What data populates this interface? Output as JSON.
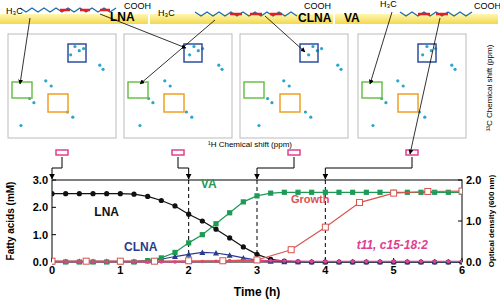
{
  "header": {
    "molecules": [
      {
        "label": "LNA",
        "methyl": "H₃C",
        "acid": "COOH"
      },
      {
        "label": "CLNA",
        "methyl": "H₃C",
        "acid": "COOH"
      },
      {
        "label": "VA",
        "methyl": "H₃C",
        "acid": "COOH"
      }
    ],
    "x_axis_label": "¹H Chemical shift (ppm)",
    "y_axis_label": "¹³C Chemical shift (ppm)"
  },
  "chart_data": {
    "type": "line",
    "x_label": "Time (h)",
    "y_label": "Fatty acids (mM)",
    "y2_label": "Optical density (600 nm)",
    "xlim": [
      0,
      6
    ],
    "xticks": [
      0,
      1,
      2,
      3,
      4,
      5,
      6
    ],
    "ylim": [
      0,
      3
    ],
    "yticks": [
      {
        "value": 0,
        "label": "0.0"
      },
      {
        "value": 1,
        "label": "1.0"
      },
      {
        "value": 2,
        "label": "2.0"
      },
      {
        "value": 3,
        "label": "3.0"
      }
    ],
    "y2lim": [
      0,
      2
    ],
    "y2ticks": [
      {
        "value": 0,
        "label": "0.0"
      },
      {
        "value": 1,
        "label": "1.0"
      },
      {
        "value": 2,
        "label": "2.0"
      }
    ],
    "vlines": [
      2,
      3,
      4
    ],
    "series": [
      {
        "name": "LNA",
        "color": "#111111",
        "marker": "circle",
        "line_style": "solid",
        "x": [
          0,
          0.2,
          0.4,
          0.6,
          0.8,
          1,
          1.2,
          1.4,
          1.6,
          1.8,
          2,
          2.2,
          2.4,
          2.6,
          2.8,
          3,
          3.2,
          3.4,
          3.6,
          3.8,
          4,
          4.2,
          4.4,
          4.6,
          4.8,
          5,
          5.2,
          5.4,
          5.6,
          5.8,
          6
        ],
        "values": [
          2.5,
          2.5,
          2.5,
          2.5,
          2.5,
          2.5,
          2.48,
          2.4,
          2.25,
          2.05,
          1.75,
          1.5,
          1.2,
          0.88,
          0.55,
          0.28,
          0.1,
          0.03,
          0.01,
          0,
          0,
          0,
          0,
          0,
          0,
          0,
          0,
          0,
          0,
          0,
          0
        ]
      },
      {
        "name": "CLNA",
        "color": "#2a3b8f",
        "marker": "triangle",
        "line_style": "solid",
        "x": [
          0,
          0.2,
          0.4,
          0.6,
          0.8,
          1,
          1.2,
          1.4,
          1.6,
          1.8,
          2,
          2.2,
          2.4,
          2.6,
          2.8,
          3,
          3.2,
          3.4,
          3.6,
          3.8,
          4,
          4.2,
          4.4,
          4.6,
          4.8,
          5,
          5.2,
          5.4,
          5.6,
          5.8,
          6
        ],
        "values": [
          0.02,
          0.02,
          0.02,
          0.02,
          0.02,
          0.02,
          0.02,
          0.05,
          0.1,
          0.2,
          0.28,
          0.35,
          0.33,
          0.25,
          0.15,
          0.07,
          0.03,
          0.01,
          0.01,
          0.01,
          0.01,
          0.01,
          0.01,
          0.01,
          0.01,
          0.01,
          0.01,
          0.01,
          0.01,
          0.01,
          0.01
        ]
      },
      {
        "name": "VA",
        "color": "#1e9a55",
        "marker": "square",
        "line_style": "solid",
        "x": [
          0,
          0.2,
          0.4,
          0.6,
          0.8,
          1,
          1.2,
          1.4,
          1.6,
          1.8,
          2,
          2.2,
          2.4,
          2.6,
          2.8,
          3,
          3.2,
          3.4,
          3.6,
          3.8,
          4,
          4.2,
          4.4,
          4.6,
          4.8,
          5,
          5.2,
          5.4,
          5.6,
          5.8,
          6
        ],
        "values": [
          0,
          0,
          0,
          0,
          0,
          0,
          0,
          0.05,
          0.15,
          0.35,
          0.7,
          1.0,
          1.4,
          1.8,
          2.2,
          2.42,
          2.52,
          2.55,
          2.55,
          2.55,
          2.55,
          2.55,
          2.55,
          2.55,
          2.55,
          2.55,
          2.55,
          2.55,
          2.55,
          2.55,
          2.55
        ]
      },
      {
        "name": "t11, c15-18:2",
        "color": "#e0408f",
        "marker": "circle_small",
        "line_style": "solid",
        "x": [
          0,
          0.2,
          0.4,
          0.6,
          0.8,
          1,
          1.2,
          1.4,
          1.6,
          1.8,
          2,
          2.2,
          2.4,
          2.6,
          2.8,
          3,
          3.2,
          3.4,
          3.6,
          3.8,
          4,
          4.2,
          4.4,
          4.6,
          4.8,
          5,
          5.2,
          5.4,
          5.6,
          5.8,
          6
        ],
        "values": [
          0,
          0,
          0,
          0,
          0,
          0,
          0,
          0,
          0,
          0,
          0,
          0.02,
          0.03,
          0.05,
          0.06,
          0.06,
          0.05,
          0.04,
          0.03,
          0.02,
          0.02,
          0.02,
          0.02,
          0.02,
          0.02,
          0.02,
          0.02,
          0.02,
          0.02,
          0.02,
          0.02
        ]
      },
      {
        "name": "Growth",
        "color": "#d9534f",
        "marker": "square_open",
        "line_style": "solid",
        "axis": "y2",
        "x": [
          0,
          0.5,
          1,
          1.5,
          2,
          2.5,
          3,
          3.5,
          4,
          4.5,
          5,
          5.5,
          6
        ],
        "values": [
          0.02,
          0.02,
          0.02,
          0.02,
          0.03,
          0.03,
          0.05,
          0.3,
          0.85,
          1.45,
          1.68,
          1.72,
          1.73
        ],
        "errors": [
          0.01,
          0.01,
          0.01,
          0.01,
          0.01,
          0.01,
          0.02,
          0.05,
          0.08,
          0.06,
          0.04,
          0.03,
          0.03
        ]
      }
    ]
  }
}
